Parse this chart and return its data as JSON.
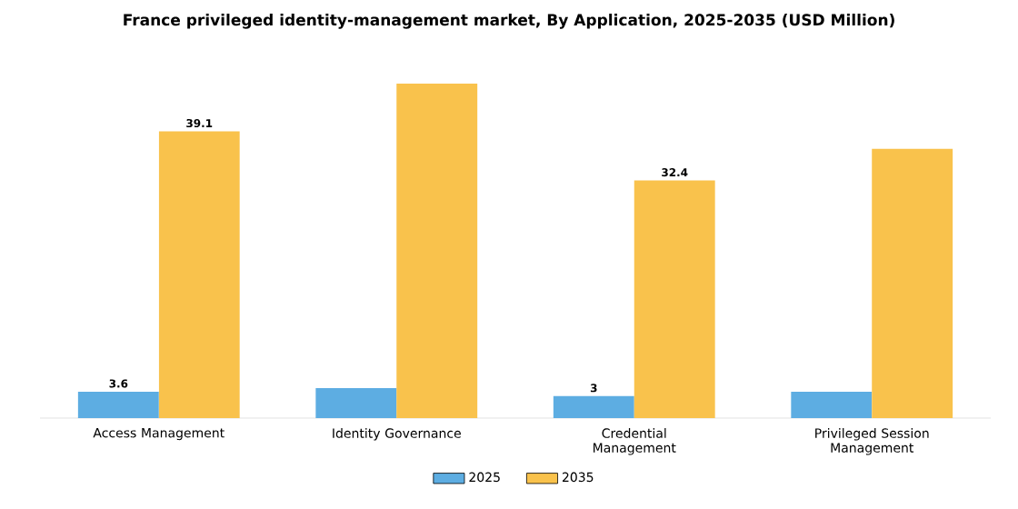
{
  "chart_data": {
    "type": "bar",
    "title": "France privileged identity-management market, By Application, 2025-2035 (USD Million)",
    "categories": [
      "Access Management",
      "Identity Governance",
      "Credential Management",
      "Privileged Session Management"
    ],
    "series": [
      {
        "name": "2025",
        "color": "#5dade2",
        "values": [
          3.6,
          4.1,
          3,
          3.6
        ],
        "value_labels": [
          "3.6",
          null,
          "3",
          null
        ]
      },
      {
        "name": "2035",
        "color": "#f9c24c",
        "values": [
          39.1,
          45.6,
          32.4,
          36.7
        ],
        "value_labels": [
          "39.1",
          null,
          "32.4",
          null
        ]
      }
    ],
    "legend": "bottom"
  }
}
